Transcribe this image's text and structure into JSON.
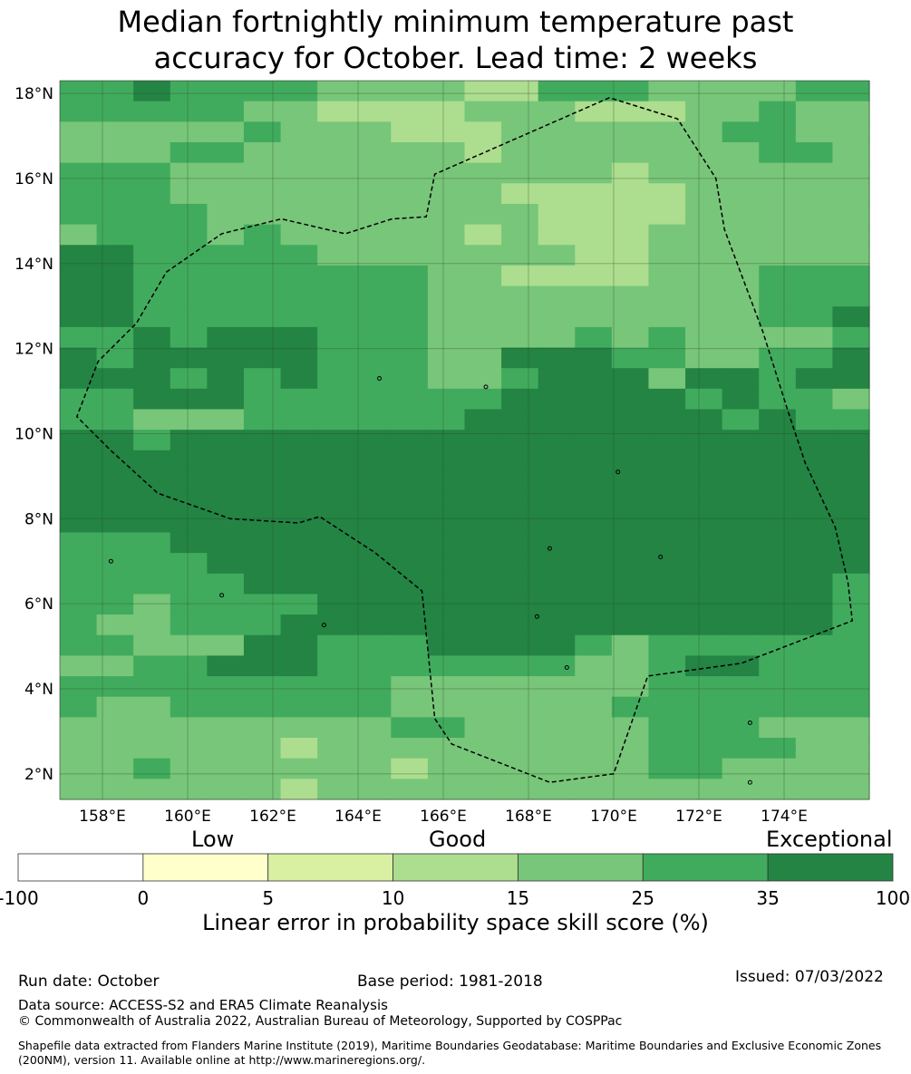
{
  "title": {
    "line1": "Median fortnightly minimum temperature past",
    "line2": "accuracy for October. Lead time: 2 weeks"
  },
  "map": {
    "lat_ticks": [
      "18°N",
      "16°N",
      "14°N",
      "12°N",
      "10°N",
      "8°N",
      "6°N",
      "4°N",
      "2°N"
    ],
    "lat_values": [
      18,
      16,
      14,
      12,
      10,
      8,
      6,
      4,
      2
    ],
    "lon_ticks": [
      "158°E",
      "160°E",
      "162°E",
      "164°E",
      "166°E",
      "168°E",
      "170°E",
      "172°E",
      "174°E"
    ],
    "lon_values": [
      158,
      160,
      162,
      164,
      166,
      168,
      170,
      172,
      174
    ],
    "lon_range": [
      157,
      176
    ],
    "lat_range": [
      1.4,
      18.3
    ],
    "grid_rows": [
      "3343333222211333222233",
      "3333322111122211122322",
      "2222232221112222223322",
      "2223322222212222222332",
      "3332222222222221222222",
      "3332222222221111122222",
      "3333222222222111122222",
      "2333232222212111222222",
      "4433333222222211222222",
      "4433333333221111222333",
      "4433333333222222222333",
      "4433333333222222222334",
      "3343444333222232322223",
      "4344444333224443322334",
      "4443434333223444244344",
      "3344433333334444434332",
      "3322233333344444443433",
      "4434444444444444444444",
      "4444444444444444444444",
      "4444444444444444444444",
      "4444444444444444444444",
      "4444444444444444444444",
      "3334444444444444444444",
      "3333444444444444444444",
      "3333344444444444444443",
      "3323333444444444444443",
      "3223334444444444444443",
      "3322244333444432333333",
      "2233444333333322344333",
      "3333333332222222333333",
      "3223333332222223333333",
      "2222222223322222333222",
      "2222221222222222333322",
      "2232222221222222332222",
      "2222221222222222222222"
    ]
  },
  "eez": [
    [
      169.9,
      17.9
    ],
    [
      165.8,
      16.1
    ],
    [
      165.6,
      15.1
    ],
    [
      164.8,
      15.05
    ],
    [
      163.7,
      14.7
    ],
    [
      162.2,
      15.05
    ],
    [
      160.8,
      14.7
    ],
    [
      159.5,
      13.8
    ],
    [
      158.8,
      12.6
    ],
    [
      157.9,
      11.7
    ],
    [
      157.4,
      10.4
    ],
    [
      158.2,
      9.6
    ],
    [
      159.3,
      8.6
    ],
    [
      161.0,
      8.0
    ],
    [
      162.6,
      7.9
    ],
    [
      163.1,
      8.05
    ],
    [
      164.4,
      7.2
    ],
    [
      165.5,
      6.3
    ],
    [
      165.8,
      3.3
    ],
    [
      166.2,
      2.7
    ],
    [
      168.5,
      1.8
    ],
    [
      170.0,
      2.0
    ],
    [
      170.8,
      4.3
    ],
    [
      173.0,
      4.6
    ],
    [
      175.6,
      5.6
    ],
    [
      175.5,
      6.5
    ],
    [
      175.2,
      7.8
    ],
    [
      174.5,
      9.3
    ],
    [
      174.1,
      10.5
    ],
    [
      173.5,
      12.4
    ],
    [
      172.6,
      14.8
    ],
    [
      172.4,
      16.0
    ],
    [
      171.5,
      17.4
    ],
    [
      169.9,
      17.9
    ]
  ],
  "colorbar": {
    "headings": {
      "low": "Low",
      "good": "Good",
      "exceptional": "Exceptional"
    },
    "tick_labels": [
      "-100",
      "0",
      "5",
      "10",
      "15",
      "25",
      "35",
      "100"
    ],
    "colors": [
      "#ffffff",
      "#ffffcc",
      "#d9f0a3",
      "#addd8e",
      "#78c679",
      "#41ab5d",
      "#238443"
    ],
    "axis_label": "Linear error in probability space skill score (%)"
  },
  "footer": {
    "run_date": "Run date: October",
    "base_period": "Base period: 1981-2018",
    "issued": "Issued: 07/03/2022",
    "data_source": "Data source: ACCESS-S2 and ERA5 Climate Reanalysis",
    "copyright": "© Commonwealth of Australia 2022, Australian Bureau of Meteorology, Supported by COSPPac",
    "shapefile": "Shapefile data extracted from Flanders Marine Institute (2019), Maritime Boundaries Geodatabase: Maritime Boundaries and Exclusive Economic Zones (200NM), version 11. Available online at http://www.marineregions.org/."
  }
}
